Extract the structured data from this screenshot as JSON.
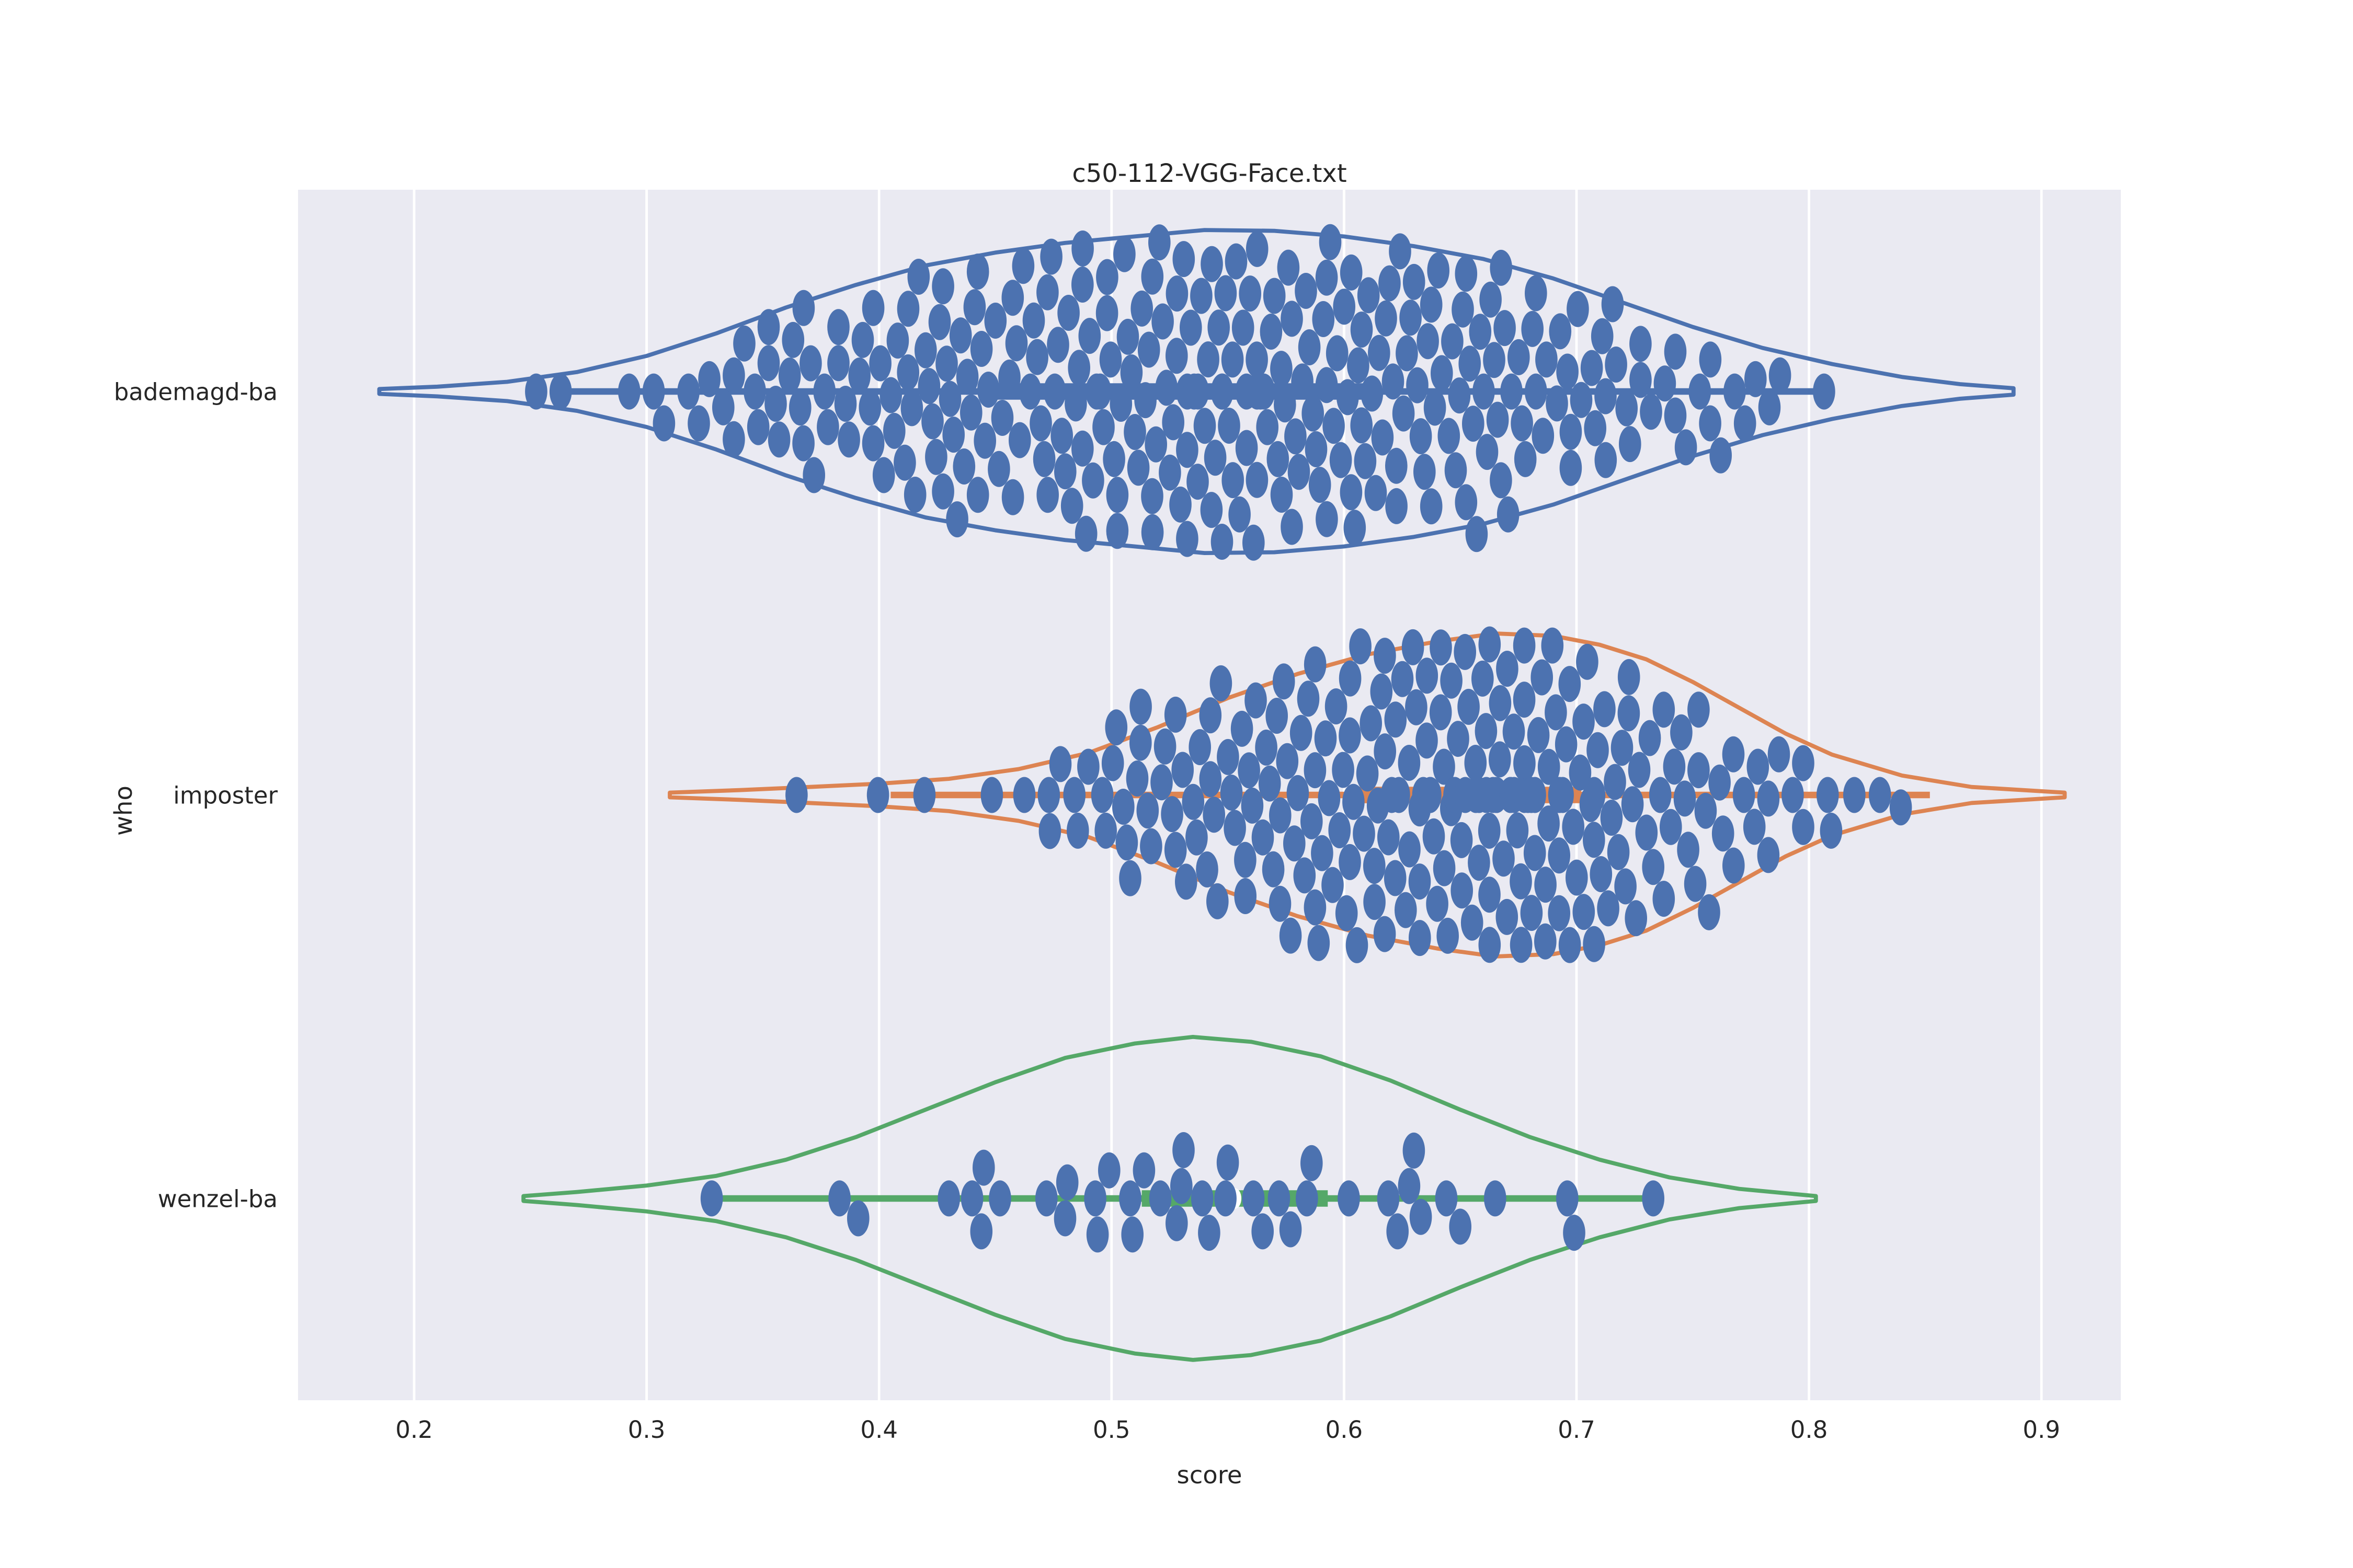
{
  "chart_data": {
    "type": "violin",
    "subtype": "horizontal-violin-with-swarm-points-and-inner-box",
    "title": "c50-112-VGG-Face.txt",
    "xlabel": "score",
    "ylabel": "who",
    "categories": [
      "bademagd-ba",
      "imposter",
      "wenzel-ba"
    ],
    "x_ticks": [
      0.2,
      0.3,
      0.4,
      0.5,
      0.6,
      0.7,
      0.8,
      0.9
    ],
    "x_tick_labels": [
      "0.2",
      "0.3",
      "0.4",
      "0.5",
      "0.6",
      "0.7",
      "0.8",
      "0.9"
    ],
    "xlim": [
      0.15,
      0.934
    ],
    "grid": true,
    "legend": "none",
    "colors": {
      "background": "#eaeaf2",
      "grid": "#ffffff",
      "text": "#262626",
      "point": "#4c72b0",
      "median_dot": "#ffffff"
    },
    "series": [
      {
        "name": "bademagd-ba",
        "color": "#4c72b0",
        "box": {
          "whisker_lo": 0.259,
          "whisker_hi": 0.809,
          "q1": 0.443,
          "q3": 0.616,
          "median": 0.531
        },
        "violin_range": [
          0.185,
          0.888
        ],
        "violin_outline": [
          [
            0.185,
            0.015
          ],
          [
            0.21,
            0.03
          ],
          [
            0.24,
            0.06
          ],
          [
            0.27,
            0.12
          ],
          [
            0.3,
            0.22
          ],
          [
            0.33,
            0.36
          ],
          [
            0.36,
            0.52
          ],
          [
            0.39,
            0.66
          ],
          [
            0.42,
            0.78
          ],
          [
            0.45,
            0.86
          ],
          [
            0.48,
            0.92
          ],
          [
            0.51,
            0.96
          ],
          [
            0.54,
            1.0
          ],
          [
            0.57,
            0.995
          ],
          [
            0.6,
            0.96
          ],
          [
            0.63,
            0.9
          ],
          [
            0.66,
            0.82
          ],
          [
            0.69,
            0.7
          ],
          [
            0.72,
            0.55
          ],
          [
            0.75,
            0.4
          ],
          [
            0.78,
            0.27
          ],
          [
            0.81,
            0.17
          ],
          [
            0.84,
            0.09
          ],
          [
            0.865,
            0.045
          ],
          [
            0.888,
            0.02
          ]
        ],
        "points_hist": [
          [
            0.26,
            2
          ],
          [
            0.3,
            2
          ],
          [
            0.315,
            2
          ],
          [
            0.33,
            4
          ],
          [
            0.345,
            5
          ],
          [
            0.36,
            7
          ],
          [
            0.375,
            6
          ],
          [
            0.39,
            7
          ],
          [
            0.405,
            8
          ],
          [
            0.42,
            10
          ],
          [
            0.435,
            11
          ],
          [
            0.45,
            9
          ],
          [
            0.465,
            10
          ],
          [
            0.48,
            11
          ],
          [
            0.495,
            13
          ],
          [
            0.51,
            11
          ],
          [
            0.525,
            13
          ],
          [
            0.54,
            14
          ],
          [
            0.555,
            15
          ],
          [
            0.57,
            13
          ],
          [
            0.585,
            11
          ],
          [
            0.6,
            13
          ],
          [
            0.615,
            11
          ],
          [
            0.63,
            11
          ],
          [
            0.645,
            10
          ],
          [
            0.66,
            11
          ],
          [
            0.675,
            9
          ],
          [
            0.69,
            7
          ],
          [
            0.705,
            7
          ],
          [
            0.72,
            6
          ],
          [
            0.735,
            4
          ],
          [
            0.75,
            4
          ],
          [
            0.765,
            3
          ],
          [
            0.78,
            3
          ],
          [
            0.795,
            1
          ],
          [
            0.814,
            1
          ]
        ]
      },
      {
        "name": "imposter",
        "color": "#dd8452",
        "box": {
          "whisker_lo": 0.405,
          "whisker_hi": 0.852,
          "q1": 0.605,
          "q3": 0.702,
          "median": 0.653
        },
        "violin_range": [
          0.31,
          0.91
        ],
        "violin_outline": [
          [
            0.31,
            0.015
          ],
          [
            0.34,
            0.03
          ],
          [
            0.37,
            0.05
          ],
          [
            0.4,
            0.07
          ],
          [
            0.43,
            0.1
          ],
          [
            0.46,
            0.16
          ],
          [
            0.49,
            0.26
          ],
          [
            0.52,
            0.42
          ],
          [
            0.55,
            0.6
          ],
          [
            0.58,
            0.75
          ],
          [
            0.61,
            0.87
          ],
          [
            0.64,
            0.95
          ],
          [
            0.665,
            1.0
          ],
          [
            0.69,
            0.985
          ],
          [
            0.71,
            0.93
          ],
          [
            0.73,
            0.84
          ],
          [
            0.75,
            0.7
          ],
          [
            0.77,
            0.54
          ],
          [
            0.79,
            0.38
          ],
          [
            0.81,
            0.25
          ],
          [
            0.84,
            0.12
          ],
          [
            0.87,
            0.05
          ],
          [
            0.91,
            0.015
          ]
        ],
        "points_hist": [
          [
            0.372,
            1
          ],
          [
            0.407,
            1
          ],
          [
            0.427,
            1
          ],
          [
            0.456,
            1
          ],
          [
            0.47,
            2
          ],
          [
            0.481,
            3
          ],
          [
            0.493,
            3
          ],
          [
            0.505,
            8
          ],
          [
            0.52,
            7
          ],
          [
            0.535,
            8
          ],
          [
            0.55,
            9
          ],
          [
            0.565,
            10
          ],
          [
            0.58,
            11
          ],
          [
            0.595,
            12
          ],
          [
            0.61,
            13
          ],
          [
            0.625,
            14
          ],
          [
            0.64,
            18
          ],
          [
            0.655,
            18
          ],
          [
            0.67,
            19
          ],
          [
            0.685,
            17
          ],
          [
            0.7,
            15
          ],
          [
            0.715,
            11
          ],
          [
            0.73,
            9
          ],
          [
            0.745,
            8
          ],
          [
            0.76,
            6
          ],
          [
            0.775,
            5
          ],
          [
            0.79,
            4
          ],
          [
            0.805,
            2
          ],
          [
            0.817,
            1
          ],
          [
            0.827,
            1
          ],
          [
            0.838,
            1
          ],
          [
            0.847,
            1
          ]
        ]
      },
      {
        "name": "wenzel-ba",
        "color": "#55a868",
        "box": {
          "whisker_lo": 0.328,
          "whisker_hi": 0.733,
          "q1": 0.513,
          "q3": 0.593,
          "median": 0.553
        },
        "violin_range": [
          0.247,
          0.803
        ],
        "violin_outline": [
          [
            0.247,
            0.015
          ],
          [
            0.27,
            0.04
          ],
          [
            0.3,
            0.08
          ],
          [
            0.33,
            0.14
          ],
          [
            0.36,
            0.24
          ],
          [
            0.39,
            0.38
          ],
          [
            0.42,
            0.55
          ],
          [
            0.45,
            0.72
          ],
          [
            0.48,
            0.87
          ],
          [
            0.51,
            0.96
          ],
          [
            0.535,
            1.0
          ],
          [
            0.56,
            0.97
          ],
          [
            0.59,
            0.88
          ],
          [
            0.62,
            0.73
          ],
          [
            0.65,
            0.55
          ],
          [
            0.68,
            0.38
          ],
          [
            0.71,
            0.24
          ],
          [
            0.74,
            0.13
          ],
          [
            0.77,
            0.06
          ],
          [
            0.803,
            0.015
          ]
        ],
        "points": [
          0.328,
          0.383,
          0.391,
          0.43,
          0.44,
          0.444,
          0.445,
          0.452,
          0.472,
          0.48,
          0.481,
          0.493,
          0.494,
          0.499,
          0.508,
          0.509,
          0.514,
          0.521,
          0.528,
          0.53,
          0.531,
          0.539,
          0.542,
          0.549,
          0.55,
          0.561,
          0.565,
          0.572,
          0.577,
          0.584,
          0.586,
          0.602,
          0.619,
          0.623,
          0.628,
          0.63,
          0.633,
          0.644,
          0.65,
          0.665,
          0.696,
          0.699,
          0.733
        ]
      }
    ]
  }
}
